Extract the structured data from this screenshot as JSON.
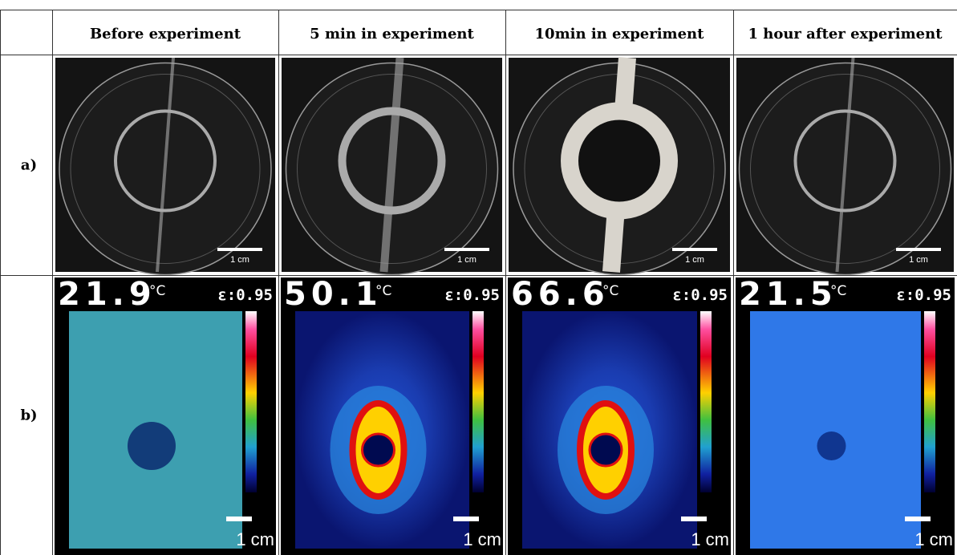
{
  "table": {
    "columns": [
      "Before experiment",
      "5 min in experiment",
      "10min in experiment",
      "1 hour after experiment"
    ],
    "rows": [
      {
        "label": "a)",
        "cells": [
          {
            "scale": "1 cm"
          },
          {
            "scale": "1 cm"
          },
          {
            "scale": "1 cm"
          },
          {
            "scale": "1 cm"
          }
        ]
      },
      {
        "label": "b)",
        "cells": [
          {
            "temperature": "21.9",
            "unit": "°C",
            "emissivity": "ε:0.95",
            "scale": "1 cm"
          },
          {
            "temperature": "50.1",
            "unit": "°C",
            "emissivity": "ε:0.95",
            "scale": "1 cm"
          },
          {
            "temperature": "66.6",
            "unit": "°C",
            "emissivity": "ε:0.95",
            "scale": "1 cm"
          },
          {
            "temperature": "21.5",
            "unit": "°C",
            "emissivity": "ε:0.95",
            "scale": "1 cm"
          }
        ]
      }
    ]
  }
}
